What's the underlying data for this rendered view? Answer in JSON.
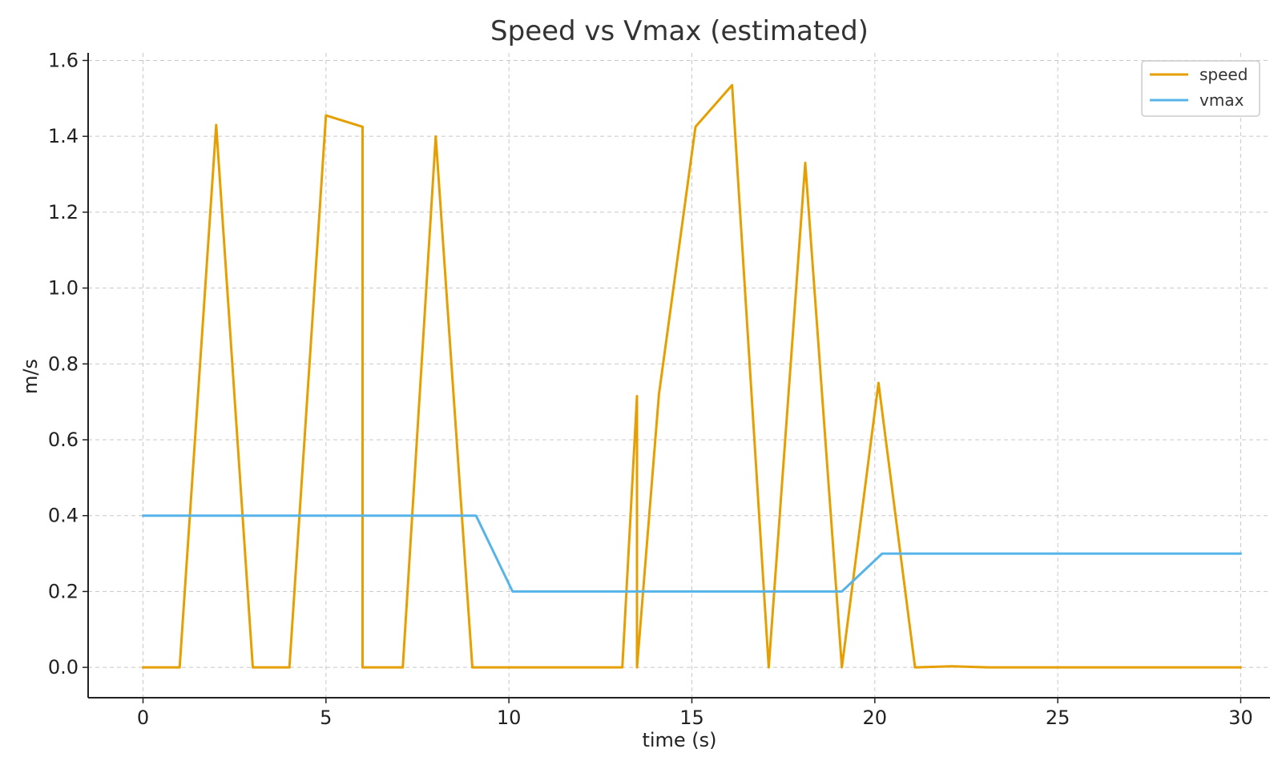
{
  "chart_data": {
    "type": "line",
    "title": "Speed vs Vmax (estimated)",
    "xlabel": "time (s)",
    "ylabel": "m/s",
    "xlim": [
      -1.5,
      30.8
    ],
    "ylim": [
      -0.08,
      1.62
    ],
    "xticks": [
      0,
      5,
      10,
      15,
      20,
      25,
      30
    ],
    "xtick_labels": [
      "0",
      "5",
      "10",
      "15",
      "20",
      "25",
      "30"
    ],
    "yticks": [
      0.0,
      0.2,
      0.4,
      0.6,
      0.8,
      1.0,
      1.2,
      1.4,
      1.6
    ],
    "ytick_labels": [
      "0.0",
      "0.2",
      "0.4",
      "0.6",
      "0.8",
      "1.0",
      "1.2",
      "1.4",
      "1.6"
    ],
    "grid": true,
    "legend_position": "top-right",
    "series": [
      {
        "name": "speed",
        "color": "#E69F00",
        "points": [
          [
            0,
            0
          ],
          [
            1,
            0
          ],
          [
            2,
            1.43
          ],
          [
            3,
            0
          ],
          [
            4,
            0
          ],
          [
            5,
            1.455
          ],
          [
            6,
            1.425
          ],
          [
            6.0,
            0
          ],
          [
            7.1,
            0
          ],
          [
            8,
            1.4
          ],
          [
            9,
            0
          ],
          [
            10,
            0
          ],
          [
            11,
            0
          ],
          [
            12,
            0
          ],
          [
            13.1,
            0
          ],
          [
            13.5,
            0.715
          ],
          [
            13.5,
            0
          ],
          [
            14.1,
            0.72
          ],
          [
            15.1,
            1.425
          ],
          [
            16.1,
            1.535
          ],
          [
            17.1,
            0
          ],
          [
            18.1,
            1.33
          ],
          [
            19.1,
            0
          ],
          [
            20.1,
            0.75
          ],
          [
            21.1,
            0
          ],
          [
            22.1,
            0.003
          ],
          [
            23.1,
            0
          ],
          [
            24,
            0
          ],
          [
            25,
            0
          ],
          [
            26,
            0
          ],
          [
            27,
            0
          ],
          [
            28,
            0
          ],
          [
            29,
            0
          ],
          [
            30,
            0
          ]
        ]
      },
      {
        "name": "vmax",
        "color": "#56B4E9",
        "points": [
          [
            0,
            0.4
          ],
          [
            9.1,
            0.4
          ],
          [
            10.1,
            0.2
          ],
          [
            19.1,
            0.2
          ],
          [
            20.2,
            0.3
          ],
          [
            30,
            0.3
          ]
        ]
      }
    ]
  }
}
